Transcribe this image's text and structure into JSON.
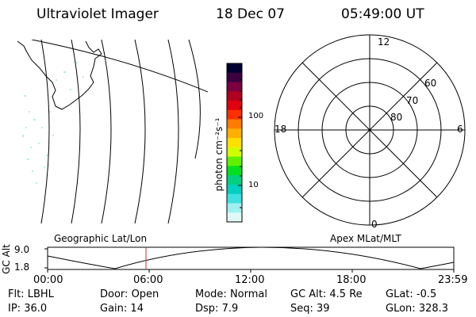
{
  "header": {
    "instrument": "Ultraviolet Imager",
    "date": "18 Dec 07",
    "time": "05:49:00 UT"
  },
  "colorbar": {
    "unit_label": "photon cm⁻²s⁻¹",
    "tick_labels": [
      "100",
      "10"
    ],
    "colors": [
      "#000033",
      "#3a0040",
      "#7a0040",
      "#b00020",
      "#e00010",
      "#ff3000",
      "#ff7a00",
      "#ffb000",
      "#ffe000",
      "#d0ff00",
      "#60f000",
      "#00e020",
      "#00d080",
      "#00d0c0",
      "#40e0e0",
      "#a0f0f0",
      "#e0f8f8"
    ]
  },
  "polar_plot": {
    "mlt_labels": {
      "top": "12",
      "left": "18",
      "right": "6",
      "bottom": "0"
    },
    "lat_labels": [
      "60",
      "70",
      "80"
    ]
  },
  "orbit_panel": {
    "ylabel": "GC Alt",
    "ytick_top": "9.0",
    "ytick_bottom": "1.8",
    "left_title": "Geographic Lat/Lon",
    "right_title": "Apex MLat/MLT",
    "x_ticks": [
      "00:00",
      "06:00",
      "12:00",
      "18:00",
      "23:59"
    ],
    "marker_color": "#cc3333"
  },
  "status": {
    "row1": [
      {
        "label": "Flt:",
        "value": "LBHL"
      },
      {
        "label": "Door:",
        "value": "Open"
      },
      {
        "label": "Mode:",
        "value": "Normal"
      },
      {
        "label": "GC Alt:",
        "value": "4.5 Re"
      },
      {
        "label": "GLat:",
        "value": "-0.5"
      }
    ],
    "row2": [
      {
        "label": "IP:",
        "value": "36.0"
      },
      {
        "label": "Gain:",
        "value": "14"
      },
      {
        "label": "Dsp:",
        "value": "7.9"
      },
      {
        "label": "Seq:",
        "value": "39"
      },
      {
        "label": "GLon:",
        "value": "328.3"
      }
    ]
  }
}
